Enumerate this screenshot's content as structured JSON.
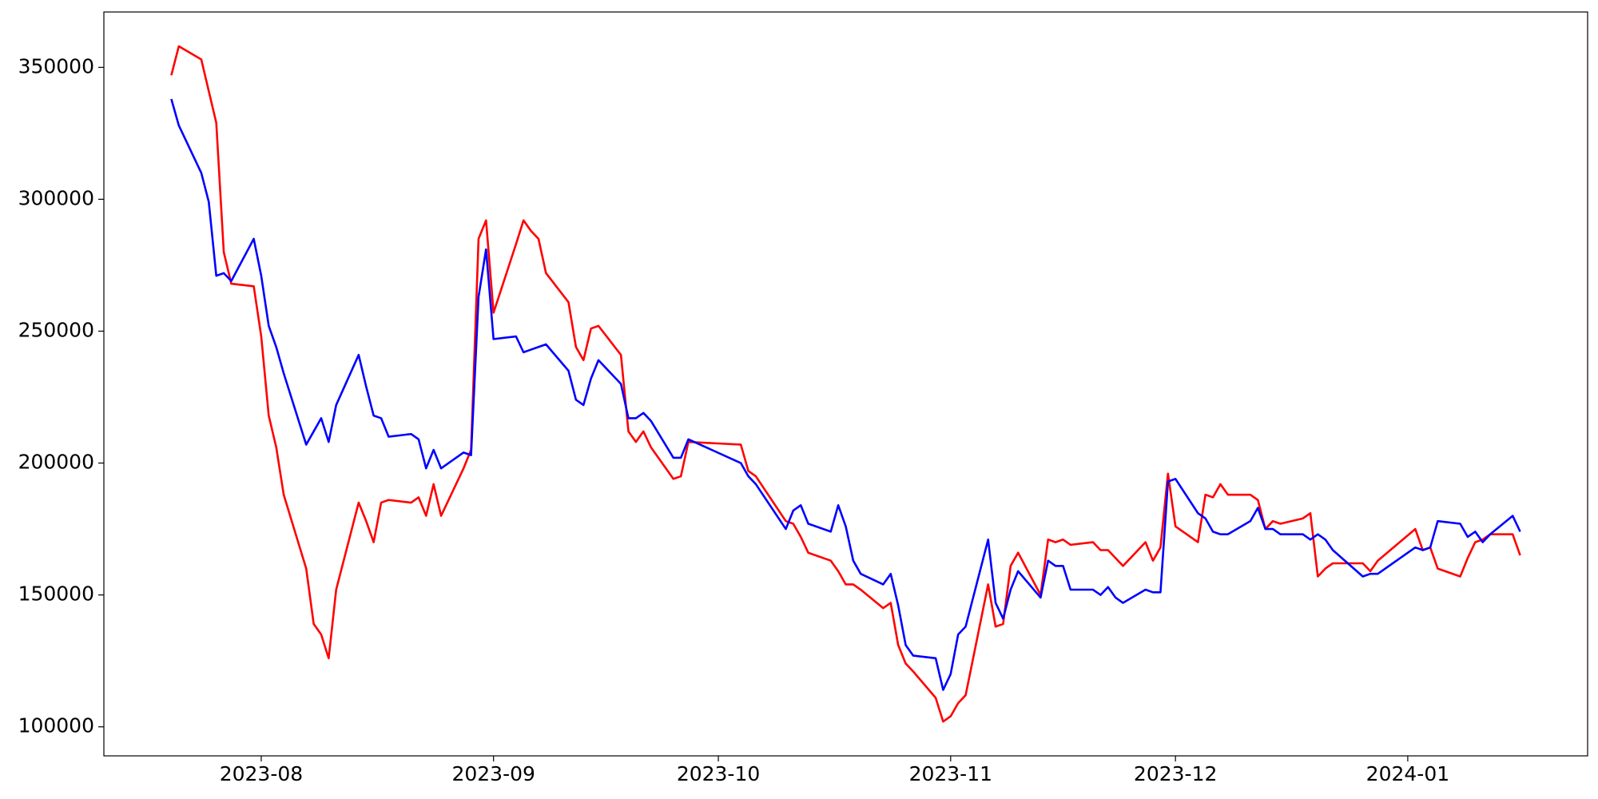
{
  "chart_data": {
    "type": "line",
    "x": [
      "2023-07-20",
      "2023-07-21",
      "2023-07-24",
      "2023-07-25",
      "2023-07-26",
      "2023-07-27",
      "2023-07-28",
      "2023-07-31",
      "2023-08-01",
      "2023-08-02",
      "2023-08-03",
      "2023-08-04",
      "2023-08-07",
      "2023-08-08",
      "2023-08-09",
      "2023-08-10",
      "2023-08-11",
      "2023-08-14",
      "2023-08-15",
      "2023-08-16",
      "2023-08-17",
      "2023-08-18",
      "2023-08-21",
      "2023-08-22",
      "2023-08-23",
      "2023-08-24",
      "2023-08-25",
      "2023-08-28",
      "2023-08-29",
      "2023-08-30",
      "2023-08-31",
      "2023-09-01",
      "2023-09-04",
      "2023-09-05",
      "2023-09-06",
      "2023-09-07",
      "2023-09-08",
      "2023-09-11",
      "2023-09-12",
      "2023-09-13",
      "2023-09-14",
      "2023-09-15",
      "2023-09-18",
      "2023-09-19",
      "2023-09-20",
      "2023-09-21",
      "2023-09-22",
      "2023-09-25",
      "2023-09-26",
      "2023-09-27",
      "2023-10-04",
      "2023-10-05",
      "2023-10-06",
      "2023-10-10",
      "2023-10-11",
      "2023-10-12",
      "2023-10-13",
      "2023-10-16",
      "2023-10-17",
      "2023-10-18",
      "2023-10-19",
      "2023-10-20",
      "2023-10-23",
      "2023-10-24",
      "2023-10-25",
      "2023-10-26",
      "2023-10-27",
      "2023-10-30",
      "2023-10-31",
      "2023-11-01",
      "2023-11-02",
      "2023-11-03",
      "2023-11-06",
      "2023-11-07",
      "2023-11-08",
      "2023-11-09",
      "2023-11-10",
      "2023-11-13",
      "2023-11-14",
      "2023-11-15",
      "2023-11-16",
      "2023-11-17",
      "2023-11-20",
      "2023-11-21",
      "2023-11-22",
      "2023-11-23",
      "2023-11-24",
      "2023-11-27",
      "2023-11-28",
      "2023-11-29",
      "2023-11-30",
      "2023-12-01",
      "2023-12-04",
      "2023-12-05",
      "2023-12-06",
      "2023-12-07",
      "2023-12-08",
      "2023-12-11",
      "2023-12-12",
      "2023-12-13",
      "2023-12-14",
      "2023-12-15",
      "2023-12-18",
      "2023-12-19",
      "2023-12-20",
      "2023-12-21",
      "2023-12-22",
      "2023-12-26",
      "2023-12-27",
      "2023-12-28",
      "2024-01-02",
      "2024-01-03",
      "2024-01-04",
      "2024-01-05",
      "2024-01-08",
      "2024-01-09",
      "2024-01-10",
      "2024-01-11",
      "2024-01-12",
      "2024-01-15",
      "2024-01-16"
    ],
    "series": [
      {
        "color": "red",
        "values": [
          347000,
          358000,
          353000,
          341000,
          329000,
          280000,
          268000,
          267000,
          248000,
          218000,
          206000,
          188000,
          160000,
          139000,
          135000,
          126000,
          152000,
          185000,
          178000,
          170000,
          185000,
          186000,
          185000,
          187000,
          180000,
          192000,
          180000,
          198000,
          205000,
          285000,
          292000,
          257000,
          283000,
          292000,
          288000,
          285000,
          272000,
          261000,
          244000,
          239000,
          251000,
          252000,
          241000,
          212000,
          208000,
          212000,
          206000,
          194000,
          195000,
          208000,
          207000,
          197000,
          195000,
          178000,
          177000,
          172000,
          166000,
          163000,
          159000,
          154000,
          154000,
          152000,
          145000,
          147000,
          131000,
          124000,
          121000,
          111000,
          102000,
          104000,
          109000,
          112000,
          154000,
          138000,
          139000,
          161000,
          166000,
          150000,
          171000,
          170000,
          171000,
          169000,
          170000,
          167000,
          167000,
          164000,
          161000,
          170000,
          163000,
          168000,
          196000,
          176000,
          170000,
          188000,
          187000,
          192000,
          188000,
          188000,
          186000,
          175000,
          178000,
          177000,
          179000,
          181000,
          157000,
          160000,
          162000,
          162000,
          159000,
          163000,
          175000,
          167000,
          168000,
          160000,
          157000,
          164000,
          170000,
          171000,
          173000,
          173000,
          165000
        ]
      },
      {
        "color": "blue",
        "values": [
          338000,
          328000,
          310000,
          299000,
          271000,
          272000,
          269000,
          285000,
          271000,
          252000,
          244000,
          234000,
          207000,
          212000,
          217000,
          208000,
          222000,
          241000,
          229000,
          218000,
          217000,
          210000,
          211000,
          209000,
          198000,
          205000,
          198000,
          204000,
          203000,
          263000,
          281000,
          247000,
          248000,
          242000,
          243000,
          244000,
          245000,
          235000,
          224000,
          222000,
          232000,
          239000,
          230000,
          217000,
          217000,
          219000,
          216000,
          202000,
          202000,
          209000,
          200000,
          195000,
          192000,
          175000,
          182000,
          184000,
          177000,
          174000,
          184000,
          176000,
          163000,
          158000,
          154000,
          158000,
          146000,
          131000,
          127000,
          126000,
          114000,
          120000,
          135000,
          138000,
          171000,
          147000,
          141000,
          152000,
          159000,
          149000,
          163000,
          161000,
          161000,
          152000,
          152000,
          150000,
          153000,
          149000,
          147000,
          152000,
          151000,
          151000,
          193000,
          194000,
          181000,
          179000,
          174000,
          173000,
          173000,
          178000,
          183000,
          175000,
          175000,
          173000,
          173000,
          171000,
          173000,
          171000,
          167000,
          157000,
          158000,
          158000,
          168000,
          167000,
          168000,
          178000,
          177000,
          172000,
          174000,
          170000,
          173000,
          180000,
          174000
        ]
      }
    ],
    "xlim": [
      "2023-07-11",
      "2024-01-25"
    ],
    "xticks": [
      "2023-08",
      "2023-09",
      "2023-10",
      "2023-11",
      "2023-12",
      "2024-01"
    ],
    "ylim": [
      89000,
      371000
    ],
    "yticks": [
      100000,
      150000,
      200000,
      250000,
      300000,
      350000
    ]
  }
}
